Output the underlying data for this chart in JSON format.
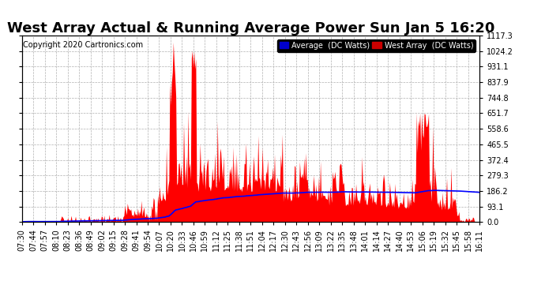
{
  "title": "West Array Actual & Running Average Power Sun Jan 5 16:20",
  "copyright": "Copyright 2020 Cartronics.com",
  "legend_labels": [
    "Average  (DC Watts)",
    "West Array  (DC Watts)"
  ],
  "legend_colors": [
    "#0000cc",
    "#cc0000"
  ],
  "yticks": [
    0.0,
    93.1,
    186.2,
    279.3,
    372.4,
    465.5,
    558.6,
    651.7,
    744.8,
    837.9,
    931.1,
    1024.2,
    1117.3
  ],
  "ymax": 1117.3,
  "ymin": 0.0,
  "fill_color": "#ff0000",
  "avg_color": "#0000ff",
  "bg_color": "#ffffff",
  "grid_color": "#b0b0b0",
  "title_fontsize": 13,
  "copyright_fontsize": 7,
  "tick_fontsize": 7,
  "x_labels": [
    "07:30",
    "07:44",
    "07:57",
    "08:10",
    "08:23",
    "08:36",
    "08:49",
    "09:02",
    "09:15",
    "09:28",
    "09:41",
    "09:54",
    "10:07",
    "10:20",
    "10:33",
    "10:46",
    "10:59",
    "11:12",
    "11:25",
    "11:38",
    "11:51",
    "12:04",
    "12:17",
    "12:30",
    "12:43",
    "12:56",
    "13:09",
    "13:22",
    "13:35",
    "13:48",
    "14:01",
    "14:14",
    "14:27",
    "14:40",
    "14:53",
    "15:06",
    "15:19",
    "15:32",
    "15:45",
    "15:58",
    "16:11"
  ]
}
